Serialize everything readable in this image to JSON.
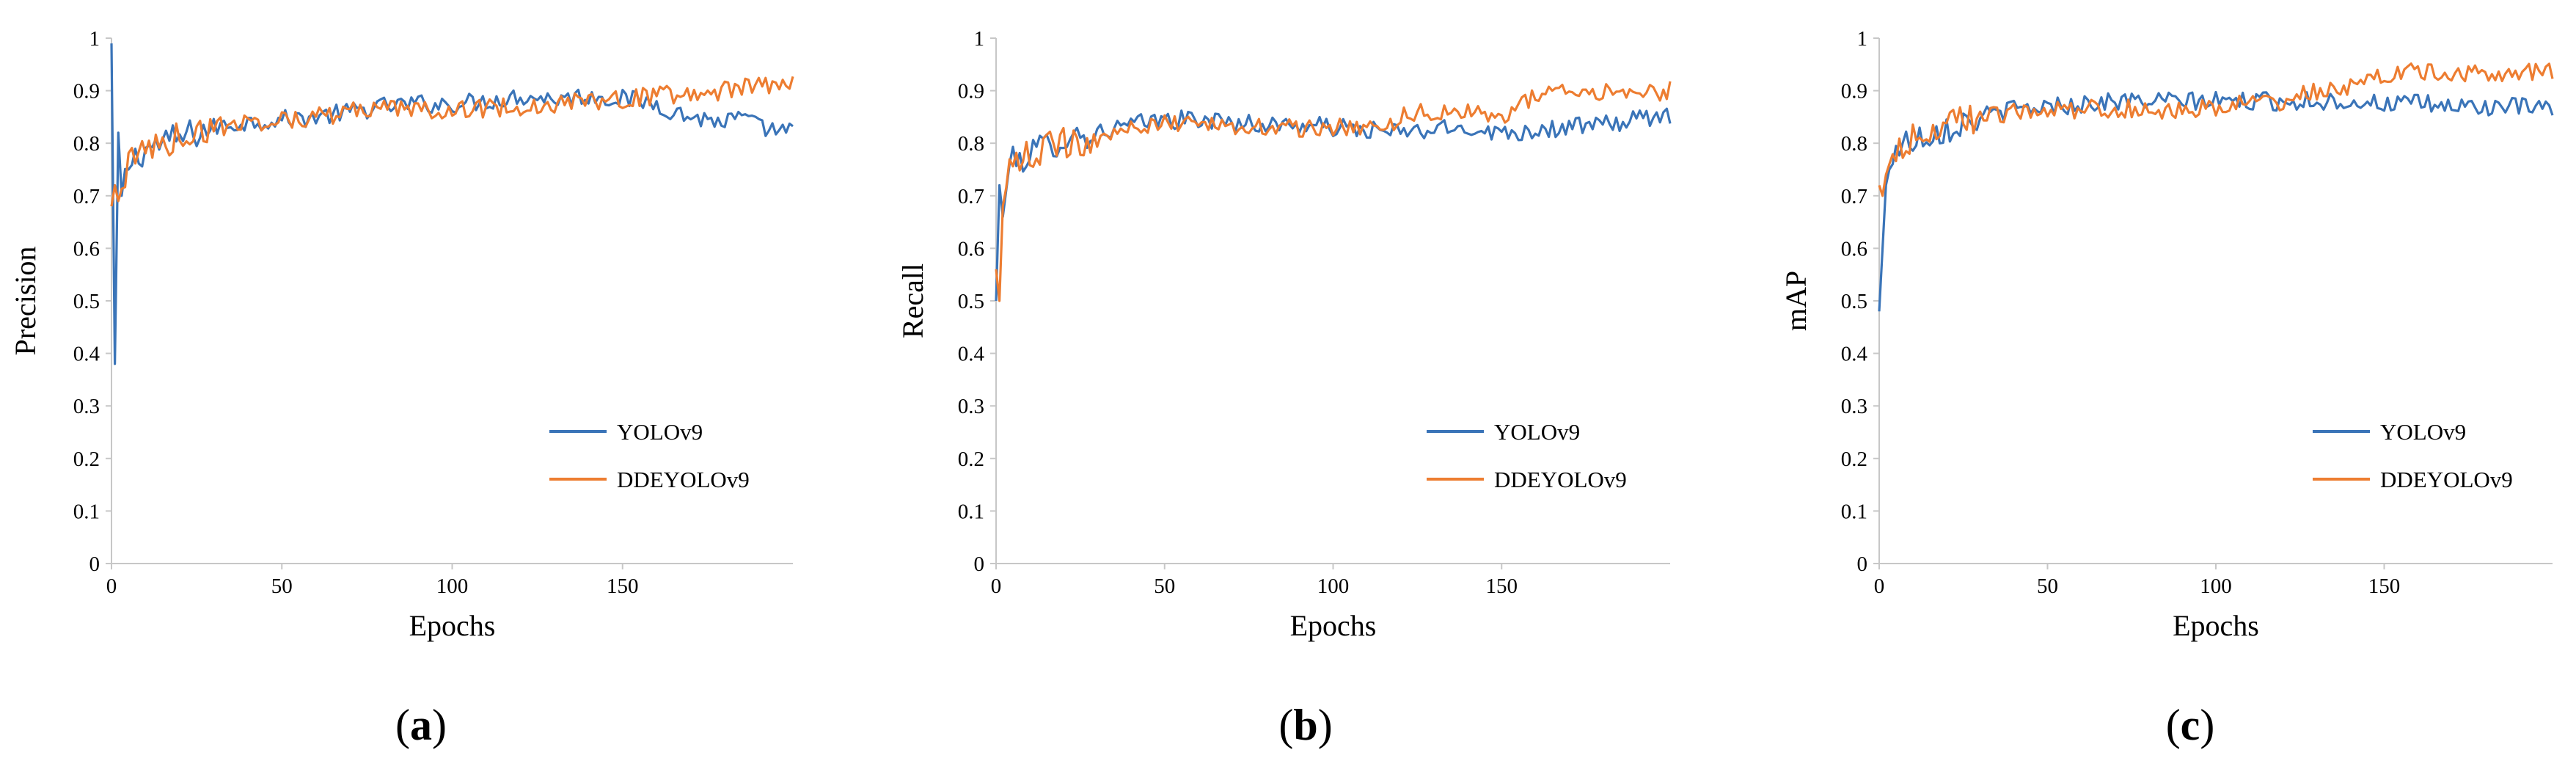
{
  "figure": {
    "colors": {
      "yolov9": "#3A74B8",
      "ddeyolov9": "#ED7D31",
      "axis": "#C7C7C7"
    }
  },
  "chart_data": [
    {
      "type": "line",
      "panel_label": {
        "open": "(",
        "letter": "a",
        "close": ")"
      },
      "xlabel": "Epochs",
      "ylabel": "Precision",
      "xlim": [
        0,
        200
      ],
      "ylim": [
        0,
        1
      ],
      "xticks": [
        0,
        50,
        100,
        150
      ],
      "xtick_labels": [
        "0",
        "50",
        "100",
        "150"
      ],
      "yticks": [
        0,
        0.1,
        0.2,
        0.3,
        0.4,
        0.5,
        0.6,
        0.7,
        0.8,
        0.9,
        1
      ],
      "ytick_labels": [
        "0",
        "0.1",
        "0.2",
        "0.3",
        "0.4",
        "0.5",
        "0.6",
        "0.7",
        "0.8",
        "0.9",
        "1"
      ],
      "legend": {
        "position": "lower-right",
        "entries": [
          "YOLOv9",
          "DDEYOLOv9"
        ]
      },
      "series": [
        {
          "name": "YOLOv9",
          "color": "#3A74B8",
          "keypoints": [
            [
              0,
              0.99
            ],
            [
              1,
              0.38
            ],
            [
              2,
              0.82
            ],
            [
              3,
              0.7
            ],
            [
              5,
              0.76
            ],
            [
              10,
              0.79
            ],
            [
              20,
              0.81
            ],
            [
              30,
              0.83
            ],
            [
              40,
              0.84
            ],
            [
              50,
              0.845
            ],
            [
              60,
              0.85
            ],
            [
              70,
              0.86
            ],
            [
              80,
              0.87
            ],
            [
              90,
              0.875
            ],
            [
              100,
              0.875
            ],
            [
              110,
              0.88
            ],
            [
              120,
              0.89
            ],
            [
              130,
              0.885
            ],
            [
              140,
              0.89
            ],
            [
              150,
              0.885
            ],
            [
              160,
              0.875
            ],
            [
              165,
              0.86
            ],
            [
              170,
              0.85
            ],
            [
              180,
              0.84
            ],
            [
              185,
              0.85
            ],
            [
              190,
              0.83
            ],
            [
              200,
              0.82
            ]
          ]
        },
        {
          "name": "DDEYOLOv9",
          "color": "#ED7D31",
          "keypoints": [
            [
              0,
              0.68
            ],
            [
              1,
              0.72
            ],
            [
              2,
              0.69
            ],
            [
              5,
              0.76
            ],
            [
              10,
              0.79
            ],
            [
              20,
              0.81
            ],
            [
              30,
              0.83
            ],
            [
              40,
              0.84
            ],
            [
              50,
              0.845
            ],
            [
              60,
              0.85
            ],
            [
              70,
              0.86
            ],
            [
              80,
              0.865
            ],
            [
              90,
              0.865
            ],
            [
              100,
              0.865
            ],
            [
              110,
              0.865
            ],
            [
              120,
              0.87
            ],
            [
              130,
              0.875
            ],
            [
              140,
              0.88
            ],
            [
              150,
              0.885
            ],
            [
              160,
              0.89
            ],
            [
              170,
              0.895
            ],
            [
              180,
              0.9
            ],
            [
              190,
              0.91
            ],
            [
              200,
              0.915
            ]
          ]
        }
      ]
    },
    {
      "type": "line",
      "panel_label": {
        "open": "(",
        "letter": "b",
        "close": ")"
      },
      "xlabel": "Epochs",
      "ylabel": "Recall",
      "xlim": [
        0,
        200
      ],
      "ylim": [
        0,
        1
      ],
      "xticks": [
        0,
        50,
        100,
        150
      ],
      "xtick_labels": [
        "0",
        "50",
        "100",
        "150"
      ],
      "yticks": [
        0,
        0.1,
        0.2,
        0.3,
        0.4,
        0.5,
        0.6,
        0.7,
        0.8,
        0.9,
        1
      ],
      "ytick_labels": [
        "0",
        "0.1",
        "0.2",
        "0.3",
        "0.4",
        "0.5",
        "0.6",
        "0.7",
        "0.8",
        "0.9",
        "1"
      ],
      "legend": {
        "position": "lower-right",
        "entries": [
          "YOLOv9",
          "DDEYOLOv9"
        ]
      },
      "series": [
        {
          "name": "YOLOv9",
          "color": "#3A74B8",
          "keypoints": [
            [
              0,
              0.5
            ],
            [
              1,
              0.72
            ],
            [
              2,
              0.66
            ],
            [
              4,
              0.76
            ],
            [
              10,
              0.78
            ],
            [
              20,
              0.81
            ],
            [
              30,
              0.82
            ],
            [
              40,
              0.835
            ],
            [
              50,
              0.845
            ],
            [
              60,
              0.845
            ],
            [
              70,
              0.84
            ],
            [
              80,
              0.835
            ],
            [
              90,
              0.835
            ],
            [
              100,
              0.83
            ],
            [
              110,
              0.825
            ],
            [
              120,
              0.82
            ],
            [
              130,
              0.825
            ],
            [
              140,
              0.83
            ],
            [
              150,
              0.82
            ],
            [
              160,
              0.825
            ],
            [
              170,
              0.83
            ],
            [
              180,
              0.835
            ],
            [
              190,
              0.845
            ],
            [
              200,
              0.855
            ]
          ]
        },
        {
          "name": "DDEYOLOv9",
          "color": "#ED7D31",
          "keypoints": [
            [
              0,
              0.56
            ],
            [
              1,
              0.5
            ],
            [
              2,
              0.68
            ],
            [
              4,
              0.75
            ],
            [
              10,
              0.78
            ],
            [
              20,
              0.8
            ],
            [
              30,
              0.81
            ],
            [
              40,
              0.83
            ],
            [
              50,
              0.835
            ],
            [
              60,
              0.835
            ],
            [
              70,
              0.835
            ],
            [
              80,
              0.83
            ],
            [
              90,
              0.83
            ],
            [
              100,
              0.83
            ],
            [
              110,
              0.825
            ],
            [
              118,
              0.83
            ],
            [
              120,
              0.855
            ],
            [
              130,
              0.86
            ],
            [
              140,
              0.86
            ],
            [
              150,
              0.85
            ],
            [
              155,
              0.87
            ],
            [
              160,
              0.895
            ],
            [
              170,
              0.895
            ],
            [
              180,
              0.895
            ],
            [
              190,
              0.895
            ],
            [
              200,
              0.9
            ]
          ]
        }
      ]
    },
    {
      "type": "line",
      "panel_label": {
        "open": "(",
        "letter": "c",
        "close": ")"
      },
      "xlabel": "Epochs",
      "ylabel": "mAP",
      "xlim": [
        0,
        200
      ],
      "ylim": [
        0,
        1
      ],
      "xticks": [
        0,
        50,
        100,
        150
      ],
      "xtick_labels": [
        "0",
        "50",
        "100",
        "150"
      ],
      "yticks": [
        0,
        0.1,
        0.2,
        0.3,
        0.4,
        0.5,
        0.6,
        0.7,
        0.8,
        0.9,
        1
      ],
      "ytick_labels": [
        "0",
        "0.1",
        "0.2",
        "0.3",
        "0.4",
        "0.5",
        "0.6",
        "0.7",
        "0.8",
        "0.9",
        "1"
      ],
      "legend": {
        "position": "lower-right",
        "entries": [
          "YOLOv9",
          "DDEYOLOv9"
        ]
      },
      "series": [
        {
          "name": "YOLOv9",
          "color": "#3A74B8",
          "keypoints": [
            [
              0,
              0.48
            ],
            [
              1,
              0.6
            ],
            [
              2,
              0.72
            ],
            [
              4,
              0.78
            ],
            [
              10,
              0.81
            ],
            [
              20,
              0.83
            ],
            [
              30,
              0.85
            ],
            [
              40,
              0.865
            ],
            [
              50,
              0.87
            ],
            [
              60,
              0.875
            ],
            [
              70,
              0.88
            ],
            [
              80,
              0.88
            ],
            [
              90,
              0.88
            ],
            [
              100,
              0.88
            ],
            [
              110,
              0.88
            ],
            [
              120,
              0.88
            ],
            [
              130,
              0.88
            ],
            [
              140,
              0.88
            ],
            [
              150,
              0.875
            ],
            [
              160,
              0.875
            ],
            [
              170,
              0.87
            ],
            [
              180,
              0.87
            ],
            [
              190,
              0.868
            ],
            [
              200,
              0.865
            ]
          ]
        },
        {
          "name": "DDEYOLOv9",
          "color": "#ED7D31",
          "keypoints": [
            [
              0,
              0.72
            ],
            [
              1,
              0.7
            ],
            [
              2,
              0.74
            ],
            [
              4,
              0.78
            ],
            [
              10,
              0.81
            ],
            [
              20,
              0.835
            ],
            [
              30,
              0.85
            ],
            [
              40,
              0.86
            ],
            [
              50,
              0.865
            ],
            [
              60,
              0.865
            ],
            [
              70,
              0.865
            ],
            [
              80,
              0.865
            ],
            [
              90,
              0.865
            ],
            [
              100,
              0.87
            ],
            [
              110,
              0.875
            ],
            [
              120,
              0.88
            ],
            [
              125,
              0.9
            ],
            [
              130,
              0.895
            ],
            [
              140,
              0.905
            ],
            [
              150,
              0.93
            ],
            [
              160,
              0.935
            ],
            [
              170,
              0.935
            ],
            [
              180,
              0.935
            ],
            [
              190,
              0.935
            ],
            [
              200,
              0.935
            ]
          ]
        }
      ]
    }
  ]
}
